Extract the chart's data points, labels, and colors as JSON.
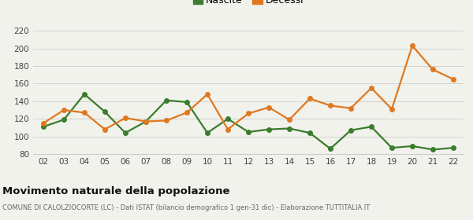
{
  "years": [
    "02",
    "03",
    "04",
    "05",
    "06",
    "07",
    "08",
    "09",
    "10",
    "11",
    "12",
    "13",
    "14",
    "15",
    "16",
    "17",
    "18",
    "19",
    "20",
    "21",
    "22"
  ],
  "nascite": [
    111,
    119,
    148,
    128,
    104,
    117,
    141,
    139,
    104,
    120,
    105,
    108,
    109,
    104,
    86,
    107,
    111,
    87,
    89,
    85,
    87
  ],
  "decessi": [
    115,
    130,
    127,
    108,
    121,
    117,
    118,
    127,
    148,
    108,
    126,
    133,
    119,
    143,
    135,
    132,
    155,
    131,
    203,
    176,
    165
  ],
  "nascite_color": "#3a7d2c",
  "decessi_color": "#e07820",
  "background_color": "#f2f2ed",
  "grid_color": "#cccccc",
  "ylim": [
    80,
    225
  ],
  "yticks": [
    80,
    100,
    120,
    140,
    160,
    180,
    200,
    220
  ],
  "title": "Movimento naturale della popolazione",
  "subtitle": "COMUNE DI CALOLZIOCORTE (LC) - Dati ISTAT (bilancio demografico 1 gen-31 dic) - Elaborazione TUTTITALIA.IT",
  "legend_labels": [
    "Nascite",
    "Decessi"
  ],
  "marker_size": 4,
  "line_width": 1.6
}
